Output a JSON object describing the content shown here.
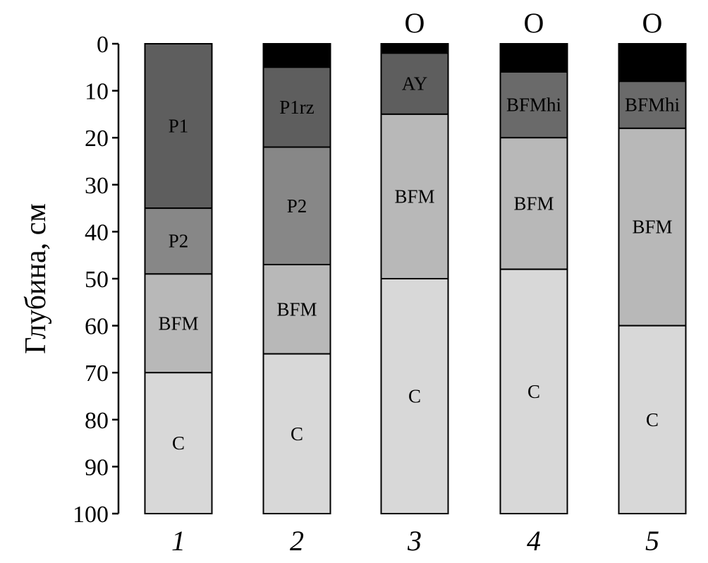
{
  "chart_data": {
    "type": "bar",
    "stacked": true,
    "orientation": "vertical",
    "ylabel": "Глубина, см",
    "yaxis_inverted": true,
    "ylim": [
      0,
      100
    ],
    "yticks": [
      0,
      10,
      20,
      30,
      40,
      50,
      60,
      70,
      80,
      90,
      100
    ],
    "categories": [
      "1",
      "2",
      "3",
      "4",
      "5"
    ],
    "colors": {
      "O": "#000000",
      "AY": "#5e5e5e",
      "P1": "#5e5e5e",
      "P1rz": "#5e5e5e",
      "BFMhi": "#6a6a6a",
      "P2": "#878787",
      "BFM": "#b8b8b8",
      "C": "#d8d8d8"
    },
    "columns": [
      {
        "category": "1",
        "top_label": "",
        "horizons": [
          {
            "name": "P1",
            "label": "P1",
            "top": 0,
            "bottom": 35
          },
          {
            "name": "P2",
            "label": "P2",
            "top": 35,
            "bottom": 49
          },
          {
            "name": "BFM",
            "label": "BFM",
            "top": 49,
            "bottom": 70
          },
          {
            "name": "C",
            "label": "C",
            "top": 70,
            "bottom": 100
          }
        ]
      },
      {
        "category": "2",
        "top_label": "",
        "horizons": [
          {
            "name": "O",
            "label": "",
            "top": 0,
            "bottom": 5
          },
          {
            "name": "P1rz",
            "label": "P1rz",
            "top": 5,
            "bottom": 22
          },
          {
            "name": "P2",
            "label": "P2",
            "top": 22,
            "bottom": 47
          },
          {
            "name": "BFM",
            "label": "BFM",
            "top": 47,
            "bottom": 66
          },
          {
            "name": "C",
            "label": "C",
            "top": 66,
            "bottom": 100
          }
        ]
      },
      {
        "category": "3",
        "top_label": "O",
        "horizons": [
          {
            "name": "O",
            "label": "",
            "top": 0,
            "bottom": 2
          },
          {
            "name": "AY",
            "label": "AY",
            "top": 2,
            "bottom": 15
          },
          {
            "name": "BFM",
            "label": "BFM",
            "top": 15,
            "bottom": 50
          },
          {
            "name": "C",
            "label": "C",
            "top": 50,
            "bottom": 100
          }
        ]
      },
      {
        "category": "4",
        "top_label": "O",
        "horizons": [
          {
            "name": "O",
            "label": "",
            "top": 0,
            "bottom": 6
          },
          {
            "name": "BFMhi",
            "label": "BFMhi",
            "top": 6,
            "bottom": 20
          },
          {
            "name": "BFM",
            "label": "BFM",
            "top": 20,
            "bottom": 48
          },
          {
            "name": "C",
            "label": "C",
            "top": 48,
            "bottom": 100
          }
        ]
      },
      {
        "category": "5",
        "top_label": "O",
        "horizons": [
          {
            "name": "O",
            "label": "",
            "top": 0,
            "bottom": 8
          },
          {
            "name": "BFMhi",
            "label": "BFMhi",
            "top": 8,
            "bottom": 18
          },
          {
            "name": "BFM",
            "label": "BFM",
            "top": 18,
            "bottom": 60
          },
          {
            "name": "C",
            "label": "C",
            "top": 60,
            "bottom": 100
          }
        ]
      }
    ]
  }
}
